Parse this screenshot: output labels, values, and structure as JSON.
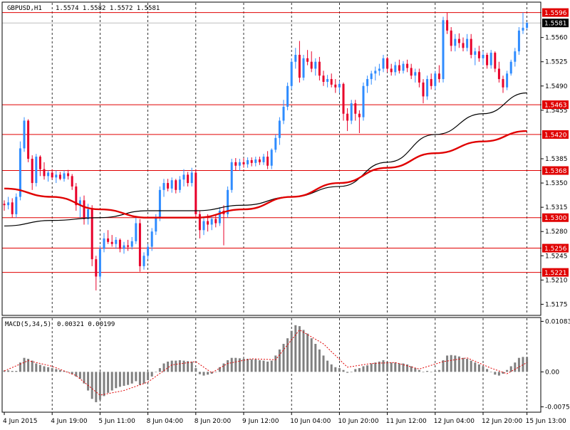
{
  "header": {
    "symbol": "GBPUSD,H1",
    "ohlc": "1.5574 1.5582 1.5572 1.5581",
    "macd_label": "MACD(5,34,5)",
    "macd_values": "0.00321 0.00199"
  },
  "colors": {
    "bull": "#2f8cff",
    "bear": "#e8002a",
    "ma_fast": "#000000",
    "ma_slow": "#e00000",
    "hline": "#e00000",
    "macd_hist": "#808080",
    "macd_signal": "#e00000",
    "grid": "#000000"
  },
  "chart_data": [
    {
      "type": "candlestick",
      "title": "GBPUSD,H1",
      "ylim": [
        1.516,
        1.561
      ],
      "y_ticks": [
        "1.5560",
        "1.5525",
        "1.5490",
        "1.5455",
        "1.5385",
        "1.5350",
        "1.5315",
        "1.5280",
        "1.5245",
        "1.5210",
        "1.5175"
      ],
      "price_levels": [
        "1.5596",
        "1.5463",
        "1.5420",
        "1.5368",
        "1.5300",
        "1.5256",
        "1.5221"
      ],
      "current_price": "1.5581",
      "candles": [
        [
          1.532,
          1.5325,
          1.531,
          1.5318
        ],
        [
          1.5318,
          1.533,
          1.5312,
          1.5322
        ],
        [
          1.5322,
          1.5328,
          1.53,
          1.5305
        ],
        [
          1.5305,
          1.5335,
          1.53,
          1.533
        ],
        [
          1.533,
          1.541,
          1.5325,
          1.54
        ],
        [
          1.54,
          1.5445,
          1.5395,
          1.544
        ],
        [
          1.544,
          1.5442,
          1.538,
          1.5385
        ],
        [
          1.5385,
          1.539,
          1.534,
          1.535
        ],
        [
          1.535,
          1.5392,
          1.5345,
          1.5388
        ],
        [
          1.5388,
          1.539,
          1.536,
          1.537
        ],
        [
          1.537,
          1.538,
          1.5355,
          1.536
        ],
        [
          1.536,
          1.5368,
          1.5352,
          1.5365
        ],
        [
          1.5365,
          1.537,
          1.5355,
          1.5358
        ],
        [
          1.5358,
          1.5368,
          1.535,
          1.5362
        ],
        [
          1.5362,
          1.5366,
          1.5354,
          1.5356
        ],
        [
          1.5356,
          1.5368,
          1.5352,
          1.5364
        ],
        [
          1.5364,
          1.5369,
          1.5355,
          1.536
        ],
        [
          1.536,
          1.5363,
          1.534,
          1.5345
        ],
        [
          1.5345,
          1.535,
          1.531,
          1.5318
        ],
        [
          1.5318,
          1.533,
          1.53,
          1.5325
        ],
        [
          1.5325,
          1.5332,
          1.529,
          1.5298
        ],
        [
          1.5298,
          1.532,
          1.529,
          1.5312
        ],
        [
          1.5312,
          1.5318,
          1.523,
          1.524
        ],
        [
          1.524,
          1.5245,
          1.5195,
          1.5215
        ],
        [
          1.5215,
          1.526,
          1.521,
          1.5255
        ],
        [
          1.5255,
          1.5278,
          1.525,
          1.527
        ],
        [
          1.527,
          1.5282,
          1.5262,
          1.5265
        ],
        [
          1.5265,
          1.5275,
          1.5258,
          1.5262
        ],
        [
          1.5262,
          1.5272,
          1.5255,
          1.5268
        ],
        [
          1.5268,
          1.527,
          1.525,
          1.5255
        ],
        [
          1.5255,
          1.5265,
          1.5248,
          1.526
        ],
        [
          1.526,
          1.5268,
          1.5252,
          1.5258
        ],
        [
          1.5258,
          1.5272,
          1.5254,
          1.5266
        ],
        [
          1.5266,
          1.53,
          1.5262,
          1.5292
        ],
        [
          1.5292,
          1.5298,
          1.5222,
          1.523
        ],
        [
          1.523,
          1.525,
          1.5225,
          1.5245
        ],
        [
          1.5245,
          1.5262,
          1.524,
          1.5258
        ],
        [
          1.5258,
          1.5285,
          1.5252,
          1.528
        ],
        [
          1.528,
          1.5305,
          1.5275,
          1.53
        ],
        [
          1.53,
          1.5345,
          1.5295,
          1.534
        ],
        [
          1.534,
          1.5356,
          1.533,
          1.535
        ],
        [
          1.535,
          1.5356,
          1.5338,
          1.5342
        ],
        [
          1.5342,
          1.5358,
          1.5336,
          1.5354
        ],
        [
          1.5354,
          1.5356,
          1.5335,
          1.534
        ],
        [
          1.534,
          1.536,
          1.5336,
          1.5355
        ],
        [
          1.5355,
          1.537,
          1.5345,
          1.5362
        ],
        [
          1.5362,
          1.5366,
          1.5345,
          1.535
        ],
        [
          1.535,
          1.5372,
          1.5345,
          1.5365
        ],
        [
          1.5365,
          1.537,
          1.53,
          1.5305
        ],
        [
          1.5305,
          1.531,
          1.527,
          1.5282
        ],
        [
          1.5282,
          1.53,
          1.5275,
          1.5295
        ],
        [
          1.5295,
          1.5305,
          1.528,
          1.529
        ],
        [
          1.529,
          1.5302,
          1.5282,
          1.5298
        ],
        [
          1.5298,
          1.5305,
          1.5286,
          1.5292
        ],
        [
          1.5292,
          1.5315,
          1.5288,
          1.531
        ],
        [
          1.531,
          1.5318,
          1.526,
          1.5305
        ],
        [
          1.5305,
          1.5345,
          1.53,
          1.534
        ],
        [
          1.534,
          1.5385,
          1.5336,
          1.538
        ],
        [
          1.538,
          1.5386,
          1.5368,
          1.5375
        ],
        [
          1.5375,
          1.5385,
          1.5368,
          1.538
        ],
        [
          1.538,
          1.5386,
          1.5372,
          1.5377
        ],
        [
          1.5377,
          1.5387,
          1.5372,
          1.5383
        ],
        [
          1.5383,
          1.5387,
          1.5374,
          1.5379
        ],
        [
          1.5379,
          1.5388,
          1.5374,
          1.5384
        ],
        [
          1.5384,
          1.5388,
          1.5376,
          1.538
        ],
        [
          1.538,
          1.5392,
          1.5376,
          1.5388
        ],
        [
          1.5388,
          1.5396,
          1.537,
          1.5375
        ],
        [
          1.5375,
          1.54,
          1.537,
          1.5398
        ],
        [
          1.5398,
          1.542,
          1.5394,
          1.5415
        ],
        [
          1.5415,
          1.5445,
          1.5405,
          1.544
        ],
        [
          1.544,
          1.547,
          1.5435,
          1.546
        ],
        [
          1.546,
          1.5495,
          1.5455,
          1.549
        ],
        [
          1.549,
          1.553,
          1.5485,
          1.5525
        ],
        [
          1.5525,
          1.5545,
          1.5515,
          1.5535
        ],
        [
          1.5535,
          1.5555,
          1.5495,
          1.5502
        ],
        [
          1.5502,
          1.5535,
          1.5498,
          1.553
        ],
        [
          1.553,
          1.5542,
          1.552,
          1.5525
        ],
        [
          1.5525,
          1.554,
          1.551,
          1.5515
        ],
        [
          1.5515,
          1.553,
          1.5505,
          1.5525
        ],
        [
          1.5525,
          1.5532,
          1.5498,
          1.5505
        ],
        [
          1.5505,
          1.5512,
          1.549,
          1.5496
        ],
        [
          1.5496,
          1.5506,
          1.5488,
          1.55
        ],
        [
          1.55,
          1.5508,
          1.5488,
          1.5492
        ],
        [
          1.5492,
          1.55,
          1.548,
          1.5488
        ],
        [
          1.5488,
          1.5498,
          1.548,
          1.5493
        ],
        [
          1.5493,
          1.5495,
          1.544,
          1.545
        ],
        [
          1.545,
          1.5458,
          1.5425,
          1.544
        ],
        [
          1.544,
          1.547,
          1.5435,
          1.5465
        ],
        [
          1.5465,
          1.547,
          1.544,
          1.545
        ],
        [
          1.545,
          1.5455,
          1.5422,
          1.5445
        ],
        [
          1.5445,
          1.5495,
          1.544,
          1.549
        ],
        [
          1.549,
          1.5505,
          1.548,
          1.55
        ],
        [
          1.55,
          1.5512,
          1.5492,
          1.5508
        ],
        [
          1.5508,
          1.5518,
          1.5498,
          1.5512
        ],
        [
          1.5512,
          1.5522,
          1.5505,
          1.5515
        ],
        [
          1.5515,
          1.5535,
          1.551,
          1.553
        ],
        [
          1.553,
          1.5532,
          1.551,
          1.5515
        ],
        [
          1.5515,
          1.5522,
          1.5505,
          1.551
        ],
        [
          1.551,
          1.5525,
          1.5505,
          1.552
        ],
        [
          1.552,
          1.5528,
          1.5508,
          1.5512
        ],
        [
          1.5512,
          1.5526,
          1.5508,
          1.5522
        ],
        [
          1.5522,
          1.5528,
          1.551,
          1.5516
        ],
        [
          1.5516,
          1.5522,
          1.55,
          1.5505
        ],
        [
          1.5505,
          1.5515,
          1.5495,
          1.551
        ],
        [
          1.551,
          1.5515,
          1.5488,
          1.5495
        ],
        [
          1.5495,
          1.55,
          1.5465,
          1.5475
        ],
        [
          1.5475,
          1.5505,
          1.547,
          1.55
        ],
        [
          1.55,
          1.5508,
          1.5485,
          1.549
        ],
        [
          1.549,
          1.5512,
          1.5485,
          1.5508
        ],
        [
          1.5508,
          1.552,
          1.5495,
          1.55
        ],
        [
          1.55,
          1.559,
          1.5495,
          1.5585
        ],
        [
          1.5585,
          1.5596,
          1.5565,
          1.557
        ],
        [
          1.557,
          1.5575,
          1.554,
          1.5548
        ],
        [
          1.5548,
          1.5565,
          1.554,
          1.5558
        ],
        [
          1.5558,
          1.5566,
          1.5545,
          1.5552
        ],
        [
          1.5552,
          1.556,
          1.554,
          1.5545
        ],
        [
          1.5545,
          1.5565,
          1.554,
          1.5558
        ],
        [
          1.5558,
          1.5565,
          1.553,
          1.5535
        ],
        [
          1.5535,
          1.5545,
          1.552,
          1.554
        ],
        [
          1.554,
          1.5548,
          1.5525,
          1.553
        ],
        [
          1.553,
          1.554,
          1.552,
          1.5535
        ],
        [
          1.5535,
          1.5538,
          1.5515,
          1.552
        ],
        [
          1.552,
          1.5542,
          1.5515,
          1.5538
        ],
        [
          1.5538,
          1.554,
          1.551,
          1.5515
        ],
        [
          1.5515,
          1.5525,
          1.5495,
          1.55
        ],
        [
          1.55,
          1.5505,
          1.548,
          1.5488
        ],
        [
          1.5488,
          1.5512,
          1.5484,
          1.5508
        ],
        [
          1.5508,
          1.5528,
          1.5505,
          1.5525
        ],
        [
          1.5525,
          1.5545,
          1.5518,
          1.554
        ],
        [
          1.554,
          1.5575,
          1.5535,
          1.557
        ],
        [
          1.557,
          1.5596,
          1.5565,
          1.5574
        ],
        [
          1.5574,
          1.5582,
          1.5572,
          1.5581
        ]
      ],
      "ma_fast": [
        [
          0,
          1.5288
        ],
        [
          12,
          1.5296
        ],
        [
          24,
          1.53
        ],
        [
          36,
          1.531
        ],
        [
          48,
          1.531
        ],
        [
          60,
          1.5318
        ],
        [
          72,
          1.533
        ],
        [
          84,
          1.5345
        ],
        [
          96,
          1.538
        ],
        [
          108,
          1.542
        ],
        [
          120,
          1.545
        ],
        [
          131,
          1.548
        ]
      ],
      "ma_slow": [
        [
          0,
          1.5342
        ],
        [
          12,
          1.533
        ],
        [
          24,
          1.5312
        ],
        [
          36,
          1.53
        ],
        [
          48,
          1.53
        ],
        [
          60,
          1.5312
        ],
        [
          72,
          1.533
        ],
        [
          84,
          1.535
        ],
        [
          96,
          1.5372
        ],
        [
          108,
          1.5393
        ],
        [
          120,
          1.541
        ],
        [
          131,
          1.5425
        ]
      ],
      "x_ticks": [
        {
          "label": "4 Jun 2015",
          "index": 0
        },
        {
          "label": "4 Jun 19:00",
          "index": 12
        },
        {
          "label": "5 Jun 11:00",
          "index": 24
        },
        {
          "label": "8 Jun 04:00",
          "index": 36
        },
        {
          "label": "8 Jun 20:00",
          "index": 48
        },
        {
          "label": "9 Jun 12:00",
          "index": 60
        },
        {
          "label": "10 Jun 04:00",
          "index": 72
        },
        {
          "label": "10 Jun 20:00",
          "index": 84
        },
        {
          "label": "11 Jun 12:00",
          "index": 96
        },
        {
          "label": "12 Jun 04:00",
          "index": 108
        },
        {
          "label": "12 Jun 20:00",
          "index": 120
        },
        {
          "label": "15 Jun 13:00",
          "index": 131
        }
      ]
    },
    {
      "type": "macd",
      "title": "MACD(5,34,5)",
      "ylim": [
        -0.0085,
        0.0115
      ],
      "y_ticks": [
        "0.01083",
        "0.00",
        "-0.0075"
      ],
      "hist": [
        0.0003,
        0.0003,
        0.0002,
        0.0002,
        0.002,
        0.003,
        0.0028,
        0.0024,
        0.0018,
        0.0015,
        0.0012,
        0.001,
        0.0008,
        0.0006,
        0.0004,
        0.0002,
        0.0,
        -0.0005,
        -0.001,
        -0.0015,
        -0.0025,
        -0.004,
        -0.0058,
        -0.0065,
        -0.006,
        -0.0052,
        -0.0045,
        -0.004,
        -0.0035,
        -0.0032,
        -0.003,
        -0.0028,
        -0.0025,
        -0.002,
        -0.0028,
        -0.0025,
        -0.0018,
        -0.001,
        0.0,
        0.0008,
        0.0018,
        0.0022,
        0.0024,
        0.0024,
        0.0025,
        0.0024,
        0.0023,
        0.0022,
        0.0008,
        -0.0005,
        -0.0008,
        -0.0006,
        -0.0004,
        0.0,
        0.001,
        0.0018,
        0.0025,
        0.003,
        0.003,
        0.0029,
        0.0028,
        0.0028,
        0.0027,
        0.0027,
        0.0025,
        0.0024,
        0.0022,
        0.0024,
        0.0035,
        0.0048,
        0.006,
        0.0072,
        0.0088,
        0.01,
        0.0098,
        0.009,
        0.0082,
        0.0072,
        0.006,
        0.0048,
        0.0035,
        0.0024,
        0.0016,
        0.001,
        0.0008,
        0.0004,
        -0.0002,
        0.0,
        0.0006,
        0.0008,
        0.0012,
        0.0014,
        0.0018,
        0.002,
        0.0022,
        0.0025,
        0.0022,
        0.002,
        0.002,
        0.0018,
        0.0018,
        0.0016,
        0.0012,
        0.0008,
        0.0004,
        0.0,
        0.0002,
        0.0,
        0.0002,
        0.0004,
        0.0025,
        0.0035,
        0.0036,
        0.0035,
        0.0033,
        0.003,
        0.0028,
        0.0024,
        0.002,
        0.0016,
        0.0012,
        0.0006,
        0.0,
        -0.0006,
        -0.0008,
        -0.0004,
        0.0004,
        0.0012,
        0.002,
        0.003,
        0.0032,
        0.0032
      ],
      "signal": [
        [
          0,
          0.0002
        ],
        [
          6,
          0.0024
        ],
        [
          12,
          0.0012
        ],
        [
          18,
          -0.0008
        ],
        [
          24,
          -0.005
        ],
        [
          30,
          -0.004
        ],
        [
          36,
          -0.0022
        ],
        [
          42,
          0.0015
        ],
        [
          48,
          0.0022
        ],
        [
          52,
          -0.0002
        ],
        [
          56,
          0.0018
        ],
        [
          62,
          0.0028
        ],
        [
          68,
          0.0026
        ],
        [
          74,
          0.009
        ],
        [
          80,
          0.006
        ],
        [
          86,
          0.001
        ],
        [
          92,
          0.0018
        ],
        [
          98,
          0.002
        ],
        [
          104,
          0.0006
        ],
        [
          110,
          0.0022
        ],
        [
          116,
          0.003
        ],
        [
          122,
          0.0008
        ],
        [
          126,
          -0.0004
        ],
        [
          131,
          0.002
        ]
      ]
    }
  ]
}
